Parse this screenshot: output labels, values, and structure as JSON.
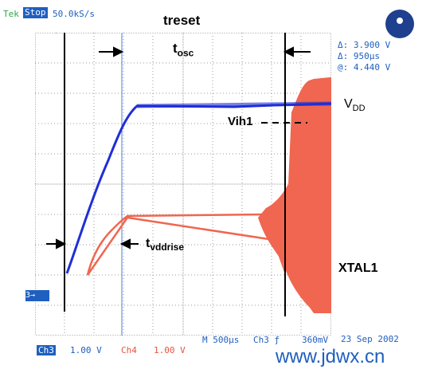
{
  "status": {
    "brand": "Tek",
    "state": "Stop",
    "sample_rate": "50.0kS/s"
  },
  "annotations": {
    "treset": "treset",
    "tosc_main": "t",
    "tosc_sub": "osc",
    "tvdd_main": "t",
    "tvdd_sub": "vddrise",
    "vih1": "Vih1",
    "vdd_main": "V",
    "vdd_sub": "DD",
    "xtal1": "XTAL1"
  },
  "cursor_readout": {
    "delta_v": "Δ: 3.900 V",
    "delta_t": "Δ: 950µs",
    "at_v": "@: 4.440 V"
  },
  "bottom": {
    "ch3_label": "Ch3",
    "ch3_scale": "1.00 V",
    "ch4_label": "Ch4",
    "ch4_scale": "1.00 V",
    "timebase": "M  500µs",
    "trig_source": "Ch3 ƒ",
    "trig_level": "360mV",
    "date": "23 Sep 2002"
  },
  "watermark": "www.jdwx.cn",
  "ch3_marker": "3→",
  "colors": {
    "ch3": "#1f5fbf",
    "ch4": "#e8543f",
    "grid": "#9a9a9a"
  }
}
